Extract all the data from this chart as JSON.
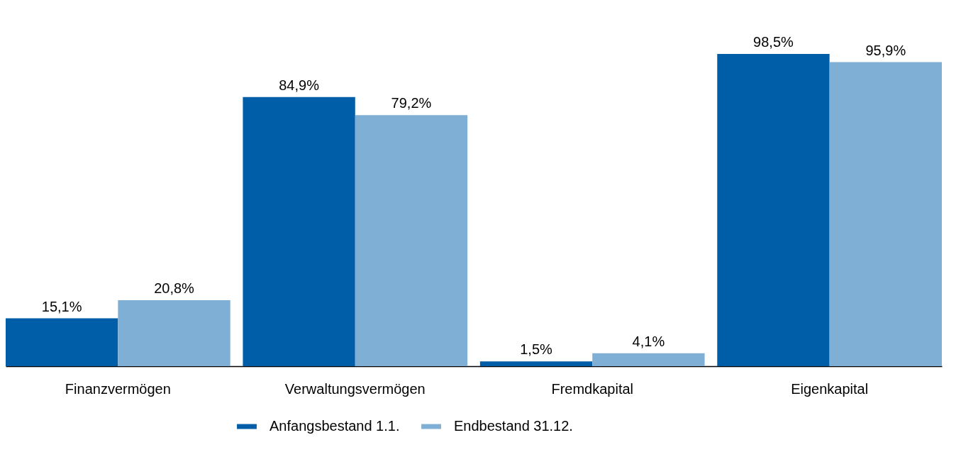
{
  "chart_data": {
    "type": "bar",
    "categories": [
      "Finanzvermögen",
      "Verwaltungsvermögen",
      "Fremdkapital",
      "Eigenkapital"
    ],
    "series": [
      {
        "name": "Anfangsbestand 1.1.",
        "color": "#005ea8",
        "values": [
          15.1,
          84.9,
          1.5,
          98.5
        ],
        "value_labels": [
          "15,1%",
          "84,9%",
          "1,5%",
          "98,5%"
        ]
      },
      {
        "name": "Endbestand 31.12.",
        "color": "#7fafd4",
        "values": [
          20.8,
          79.2,
          4.1,
          95.9
        ],
        "value_labels": [
          "20,8%",
          "79,2%",
          "4,1%",
          "95,9%"
        ]
      }
    ],
    "legend": "bottom",
    "grid": false
  }
}
